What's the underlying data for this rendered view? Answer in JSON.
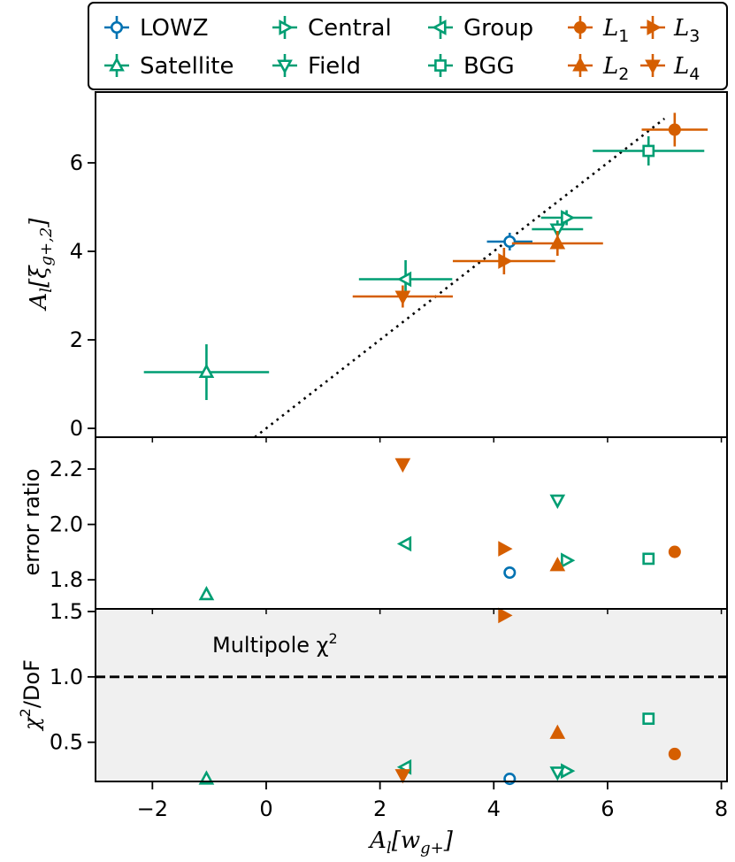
{
  "chart_data": {
    "type": "scatter",
    "legend_position": "top",
    "colors": {
      "lowz": "#0072b2",
      "green": "#009e73",
      "orange": "#d55e00",
      "shade": "#f0f0f0"
    },
    "legend": [
      {
        "id": "lowz",
        "label": "LOWZ",
        "marker": "circle",
        "color": "lowz"
      },
      {
        "id": "sat",
        "label": "Satellite",
        "marker": "triangle-up",
        "color": "green"
      },
      {
        "id": "cen",
        "label": "Central",
        "marker": "triangle-right",
        "color": "green"
      },
      {
        "id": "fld",
        "label": "Field",
        "marker": "triangle-down",
        "color": "green"
      },
      {
        "id": "grp",
        "label": "Group",
        "marker": "triangle-left",
        "color": "green"
      },
      {
        "id": "bgg",
        "label": "BGG",
        "marker": "square",
        "color": "green"
      },
      {
        "id": "l1",
        "label": "L",
        "sub": "1",
        "marker": "circle",
        "color": "orange",
        "filled": true
      },
      {
        "id": "l2",
        "label": "L",
        "sub": "2",
        "marker": "triangle-up",
        "color": "orange",
        "filled": true
      },
      {
        "id": "l3",
        "label": "L",
        "sub": "3",
        "marker": "triangle-right",
        "color": "orange",
        "filled": true
      },
      {
        "id": "l4",
        "label": "L",
        "sub": "4",
        "marker": "triangle-down",
        "color": "orange",
        "filled": true
      }
    ],
    "x_axis": {
      "label_main": "A",
      "label_sub": "l",
      "label_rest": "[w",
      "label_sub2": "g+",
      "label_close": "]",
      "xlim": [
        -3.0,
        8.1
      ],
      "ticks": [
        -2,
        0,
        2,
        4,
        6,
        8
      ],
      "tick_labels": [
        "−2",
        "0",
        "2",
        "4",
        "6",
        "8"
      ]
    },
    "panels": [
      {
        "id": "top",
        "ylabel_main": "A",
        "ylabel_sub": "l",
        "ylabel_rest": "[ξ",
        "ylabel_sub2": "g+,2",
        "ylabel_close": "]",
        "ylim": [
          -0.2,
          7.6
        ],
        "yticks": [
          0,
          2,
          4,
          6
        ],
        "ytick_labels": [
          "0",
          "2",
          "4",
          "6"
        ],
        "reference_line": {
          "style": "dotted",
          "x": [
            -0.2,
            7.0
          ],
          "y": [
            -0.2,
            7.0
          ]
        },
        "points": [
          {
            "id": "lowz",
            "x": 4.28,
            "y": 4.22,
            "xerr": 0.4,
            "yerr": 0.2
          },
          {
            "id": "sat",
            "x": -1.05,
            "y": 1.27,
            "xerr": 1.1,
            "yerr": 0.63
          },
          {
            "id": "cen",
            "x": 5.28,
            "y": 4.76,
            "xerr": 0.45,
            "yerr": 0.17
          },
          {
            "id": "fld",
            "x": 5.12,
            "y": 4.5,
            "xerr": 0.45,
            "yerr": 0.2
          },
          {
            "id": "grp",
            "x": 2.45,
            "y": 3.37,
            "xerr": 0.82,
            "yerr": 0.43
          },
          {
            "id": "bgg",
            "x": 6.72,
            "y": 6.27,
            "xerr": 0.98,
            "yerr": 0.33
          },
          {
            "id": "l1",
            "x": 7.18,
            "y": 6.75,
            "xerr": 0.58,
            "yerr": 0.38
          },
          {
            "id": "l2",
            "x": 5.12,
            "y": 4.18,
            "xerr": 0.8,
            "yerr": 0.28
          },
          {
            "id": "l3",
            "x": 4.18,
            "y": 3.78,
            "xerr": 0.9,
            "yerr": 0.3
          },
          {
            "id": "l4",
            "x": 2.4,
            "y": 2.98,
            "xerr": 0.88,
            "yerr": 0.25
          }
        ]
      },
      {
        "id": "mid",
        "ylabel": "error ratio",
        "ylim": [
          1.695,
          2.315
        ],
        "yticks": [
          1.8,
          2.0,
          2.2
        ],
        "ytick_labels": [
          "1.8",
          "2.0",
          "2.2"
        ],
        "points": [
          {
            "id": "lowz",
            "x": 4.28,
            "y": 1.826
          },
          {
            "id": "sat",
            "x": -1.05,
            "y": 1.747
          },
          {
            "id": "cen",
            "x": 5.28,
            "y": 1.87
          },
          {
            "id": "fld",
            "x": 5.12,
            "y": 2.087
          },
          {
            "id": "grp",
            "x": 2.45,
            "y": 1.93
          },
          {
            "id": "bgg",
            "x": 6.72,
            "y": 1.876
          },
          {
            "id": "l1",
            "x": 7.18,
            "y": 1.901
          },
          {
            "id": "l2",
            "x": 5.12,
            "y": 1.852
          },
          {
            "id": "l3",
            "x": 4.18,
            "y": 1.912
          },
          {
            "id": "l4",
            "x": 2.4,
            "y": 2.218
          }
        ]
      },
      {
        "id": "bot",
        "ylabel_main": "χ",
        "ylabel_sup": "2",
        "ylabel_rest": "/DoF",
        "annotation": "Multipole χ",
        "annotation_sup": "2",
        "ylim": [
          0.2,
          1.52
        ],
        "yticks": [
          0.5,
          1.0,
          1.5
        ],
        "ytick_labels": [
          "0.5",
          "1.0",
          "1.5"
        ],
        "reference_hline": {
          "y": 1.0,
          "style": "dashed"
        },
        "points": [
          {
            "id": "lowz",
            "x": 4.28,
            "y": 0.22
          },
          {
            "id": "sat",
            "x": -1.05,
            "y": 0.22
          },
          {
            "id": "cen",
            "x": 5.28,
            "y": 0.28
          },
          {
            "id": "fld",
            "x": 5.12,
            "y": 0.27
          },
          {
            "id": "grp",
            "x": 2.45,
            "y": 0.31
          },
          {
            "id": "bgg",
            "x": 6.72,
            "y": 0.68
          },
          {
            "id": "l1",
            "x": 7.18,
            "y": 0.41
          },
          {
            "id": "l2",
            "x": 5.12,
            "y": 0.57
          },
          {
            "id": "l3",
            "x": 4.18,
            "y": 1.47
          },
          {
            "id": "l4",
            "x": 2.4,
            "y": 0.25
          }
        ]
      }
    ]
  }
}
